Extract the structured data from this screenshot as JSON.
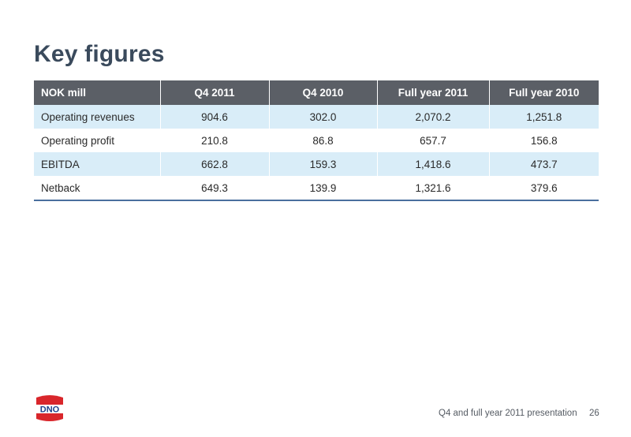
{
  "slide": {
    "title": "Key figures",
    "footer": "Q4 and full year 2011 presentation",
    "page_number": "26"
  },
  "logo": {
    "text": "DNO",
    "color": "#d9262b"
  },
  "table": {
    "headers": [
      "NOK mill",
      "Q4 2011",
      "Q4 2010",
      "Full year 2011",
      "Full year 2010"
    ],
    "rows": [
      [
        "Operating revenues",
        "904.6",
        "302.0",
        "2,070.2",
        "1,251.8"
      ],
      [
        "Operating profit",
        "210.8",
        "86.8",
        "657.7",
        "156.8"
      ],
      [
        "EBITDA",
        "662.8",
        "159.3",
        "1,418.6",
        "473.7"
      ],
      [
        "Netback",
        "649.3",
        "139.9",
        "1,321.6",
        "379.6"
      ]
    ]
  }
}
